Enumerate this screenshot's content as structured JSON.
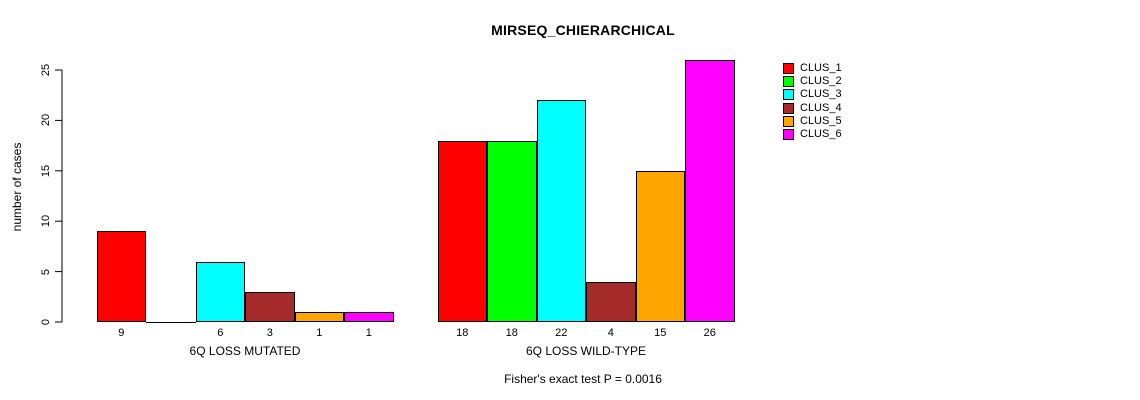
{
  "title": "MIRSEQ_CHIERARCHICAL",
  "subtitle": "Fisher's exact test P = 0.0016",
  "y_axis": {
    "label": "number of cases",
    "ticks": [
      0,
      5,
      10,
      15,
      20,
      25
    ]
  },
  "legend": {
    "items": [
      {
        "label": "CLUS_1",
        "color": "#FF0000"
      },
      {
        "label": "CLUS_2",
        "color": "#00FF00"
      },
      {
        "label": "CLUS_3",
        "color": "#00FFFF"
      },
      {
        "label": "CLUS_4",
        "color": "#A52A2A"
      },
      {
        "label": "CLUS_5",
        "color": "#FFA500"
      },
      {
        "label": "CLUS_6",
        "color": "#FF00FF"
      }
    ]
  },
  "chart_data": {
    "type": "bar",
    "title": "MIRSEQ_CHIERARCHICAL",
    "ylabel": "number of cases",
    "ylim": [
      0,
      26
    ],
    "yticks": [
      0,
      5,
      10,
      15,
      20,
      25
    ],
    "grid": false,
    "legend_position": "right",
    "annotation": "Fisher's exact test P = 0.0016",
    "series": [
      "CLUS_1",
      "CLUS_2",
      "CLUS_3",
      "CLUS_4",
      "CLUS_5",
      "CLUS_6"
    ],
    "series_colors": [
      "#FF0000",
      "#00FF00",
      "#00FFFF",
      "#A52A2A",
      "#FFA500",
      "#FF00FF"
    ],
    "groups": [
      {
        "label": "6Q LOSS MUTATED",
        "values": [
          9,
          0,
          6,
          3,
          1,
          1
        ],
        "bar_labels": [
          "9",
          "",
          "6",
          "3",
          "1",
          "1"
        ]
      },
      {
        "label": "6Q LOSS WILD-TYPE",
        "values": [
          18,
          18,
          22,
          4,
          15,
          26
        ],
        "bar_labels": [
          "18",
          "18",
          "22",
          "4",
          "15",
          "26"
        ]
      }
    ]
  }
}
